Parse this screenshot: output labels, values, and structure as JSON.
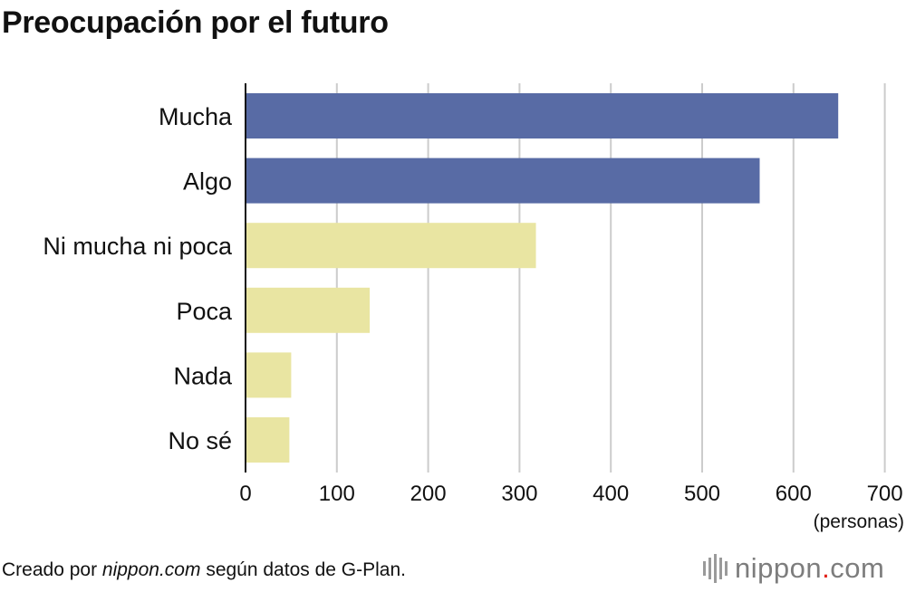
{
  "title": "Preocupación por el futuro",
  "chart_data": {
    "type": "bar",
    "orientation": "horizontal",
    "title": "Preocupación por el futuro",
    "categories": [
      "Mucha",
      "Algo",
      "Ni mucha ni poca",
      "Poca",
      "Nada",
      "No sé"
    ],
    "values": [
      649,
      563,
      318,
      136,
      50,
      48
    ],
    "colors": [
      "#586ba5",
      "#586ba5",
      "#e9e5a2",
      "#e9e5a2",
      "#e9e5a2",
      "#e9e5a2"
    ],
    "x_ticks": [
      "0",
      "100",
      "200",
      "300",
      "400",
      "500",
      "600",
      "700"
    ],
    "xlim": [
      0,
      700
    ],
    "xlabel": "(personas)",
    "grid": true
  },
  "source": {
    "prefix": "Creado por ",
    "site": "nippon.com",
    "suffix": " según datos de G-Plan."
  },
  "logo": {
    "name": "nippon",
    "dot": ".",
    "tld": "com"
  }
}
